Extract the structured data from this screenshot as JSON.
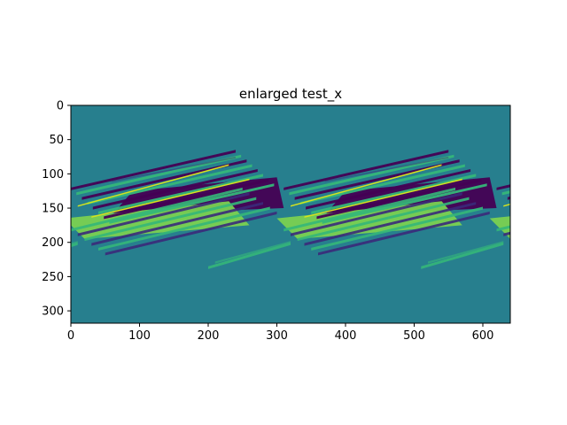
{
  "chart_data": {
    "type": "heatmap",
    "title": "enlarged test_x",
    "xlabel": "",
    "ylabel": "",
    "colormap": "viridis",
    "background_value_color": "#277f8e",
    "colors": {
      "dark": "#440154",
      "dark_mid": "#3b2a7a",
      "teal": "#277f8e",
      "green": "#35b779",
      "light_green": "#7ad151",
      "yellow": "#d6e31e"
    },
    "image_width": 640,
    "image_height": 318,
    "xlim": [
      0,
      640
    ],
    "ylim": [
      318,
      0
    ],
    "x_ticks": [
      0,
      100,
      200,
      300,
      400,
      500,
      600
    ],
    "y_ticks": [
      0,
      50,
      100,
      150,
      200,
      250,
      300
    ],
    "x_tick_labels": [
      "0",
      "100",
      "200",
      "300",
      "400",
      "500",
      "600"
    ],
    "y_tick_labels": [
      "0",
      "50",
      "100",
      "150",
      "200",
      "250",
      "300"
    ],
    "pattern_period_x": 310,
    "dark_band_rows": [
      125,
      160
    ],
    "bright_band_rows": [
      165,
      195
    ]
  }
}
